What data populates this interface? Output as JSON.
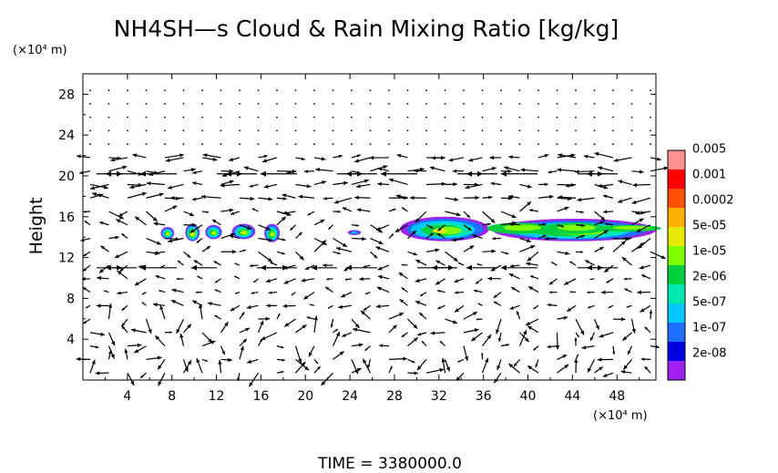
{
  "chart_data": {
    "type": "heatmap",
    "title": "NH4SH—s Cloud & Rain Mixing Ratio [kg/kg]",
    "ylabel": "Height",
    "y_unit": "(×10⁴ m)",
    "x_unit": "(×10⁴ m)",
    "xlim": [
      0,
      51.5
    ],
    "ylim": [
      0,
      30
    ],
    "x_ticks": [
      4,
      8,
      12,
      16,
      20,
      24,
      28,
      32,
      36,
      40,
      44,
      48
    ],
    "x_tick_labels": [
      "4",
      "8",
      "12",
      "16",
      "20",
      "24",
      "28",
      "32",
      "36",
      "40",
      "44",
      "48"
    ],
    "y_ticks": [
      4,
      8,
      12,
      16,
      20,
      24,
      28
    ],
    "y_tick_labels": [
      "4",
      "8",
      "12",
      "16",
      "20",
      "24",
      "28"
    ],
    "time_label": "TIME  =  3380000.0",
    "colorbar": {
      "levels": [
        "2e-08",
        "1e-07",
        "5e-07",
        "2e-06",
        "1e-05",
        "5e-05",
        "0.0002",
        "0.001",
        "0.005"
      ],
      "colors": [
        "#a020f0",
        "#0000e0",
        "#1f6fff",
        "#00c8ff",
        "#00e8b0",
        "#00d040",
        "#80ff00",
        "#e8e800",
        "#ffb000",
        "#ff5000",
        "#ff0000",
        "#ff9090"
      ]
    },
    "cloud_regions": [
      {
        "x": [
          7.0,
          8.2
        ],
        "y": [
          13.8,
          15.0
        ],
        "max_level": "5e-05"
      },
      {
        "x": [
          9.2,
          10.5
        ],
        "y": [
          13.6,
          15.3
        ],
        "max_level": "0.0002"
      },
      {
        "x": [
          11.0,
          12.5
        ],
        "y": [
          13.8,
          15.2
        ],
        "max_level": "5e-05"
      },
      {
        "x": [
          13.4,
          15.5
        ],
        "y": [
          13.8,
          15.3
        ],
        "max_level": "5e-05"
      },
      {
        "x": [
          16.3,
          17.7
        ],
        "y": [
          13.5,
          15.3
        ],
        "max_level": "5e-05"
      },
      {
        "x": [
          23.8,
          25.0
        ],
        "y": [
          14.2,
          14.7
        ],
        "max_level": "5e-07"
      },
      {
        "x": [
          28.5,
          36.5
        ],
        "y": [
          13.6,
          16.0
        ],
        "max_level": "5e-05"
      },
      {
        "x": [
          36.8,
          51.5
        ],
        "y": [
          13.6,
          15.8
        ],
        "max_level": "5e-05"
      }
    ]
  }
}
